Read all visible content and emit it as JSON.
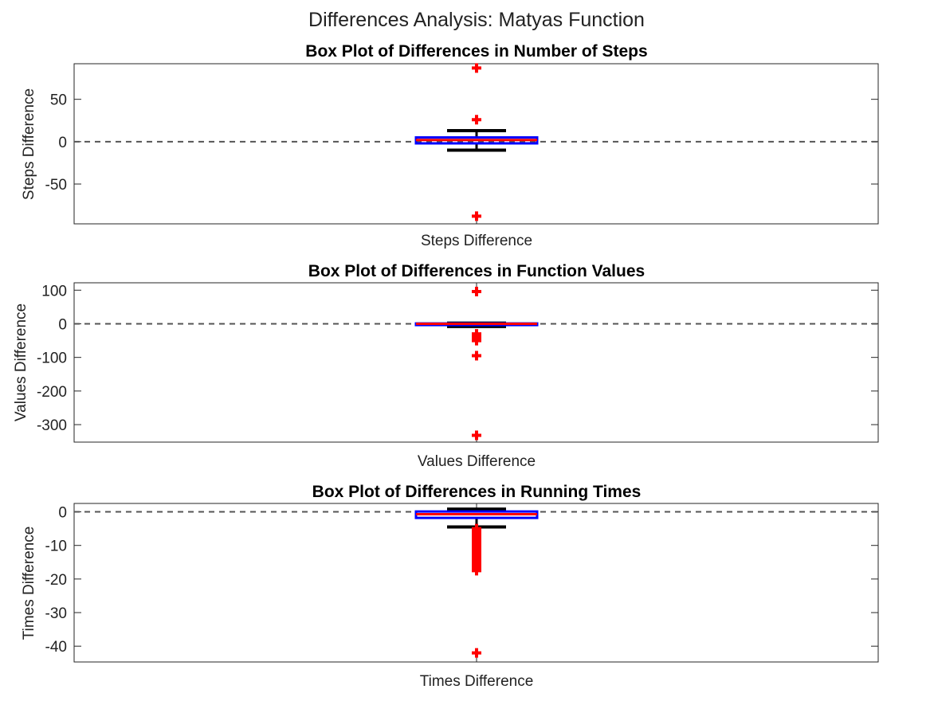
{
  "figure": {
    "suptitle": "Differences Analysis: Matyas Function"
  },
  "colors": {
    "box": "#0000ff",
    "median": "#ff0000",
    "whisker": "#000000",
    "outlier": "#ff0000",
    "zero_line": "#555555"
  },
  "chart_data": [
    {
      "type": "box",
      "title": "Box Plot of Differences in Number of Steps",
      "xlabel": "Steps Difference",
      "ylabel": "Steps Difference",
      "ylim": [
        -97,
        92
      ],
      "yticks": [
        -50,
        0,
        50
      ],
      "ytick_labels": [
        "-50",
        "0",
        "50"
      ],
      "reference_line": 0,
      "box": {
        "q1": -2,
        "median": 2,
        "q3": 5,
        "whisker_low": -10,
        "whisker_high": 13
      },
      "outliers": [
        87,
        26,
        -88
      ]
    },
    {
      "type": "box",
      "title": "Box Plot of Differences in Function Values",
      "xlabel": "Values Difference",
      "ylabel": "Values Difference",
      "ylim": [
        -352,
        122
      ],
      "yticks": [
        -300,
        -200,
        -100,
        0,
        100
      ],
      "ytick_labels": [
        "-300",
        "-200",
        "-100",
        "0",
        "100"
      ],
      "reference_line": 0,
      "box": {
        "q1": -2,
        "median": 0,
        "q3": 1,
        "whisker_low": -8,
        "whisker_high": 2
      },
      "outliers": [
        96,
        -30,
        -35,
        -40,
        -45,
        -50,
        -95,
        -332
      ]
    },
    {
      "type": "box",
      "title": "Box Plot of Differences in Running Times",
      "xlabel": "Times Difference",
      "ylabel": "Times Difference",
      "ylim": [
        -44.7,
        2.5
      ],
      "yticks": [
        -40,
        -30,
        -20,
        -10,
        0
      ],
      "ytick_labels": [
        "-40",
        "-30",
        "-20",
        "-10",
        "0"
      ],
      "reference_line": 0,
      "box": {
        "q1": -1.8,
        "median": -0.7,
        "q3": 0.1,
        "whisker_low": -4.5,
        "whisker_high": 0.8
      },
      "outliers": [
        -5,
        -5.5,
        -6,
        -6.5,
        -7,
        -7.5,
        -8,
        -8.5,
        -9,
        -9.5,
        -10,
        -10.5,
        -11,
        -11.5,
        -12,
        -12.5,
        -13,
        -13.5,
        -14,
        -14.5,
        -15,
        -15.5,
        -16,
        -16.5,
        -17,
        -17.5,
        -42
      ]
    }
  ]
}
